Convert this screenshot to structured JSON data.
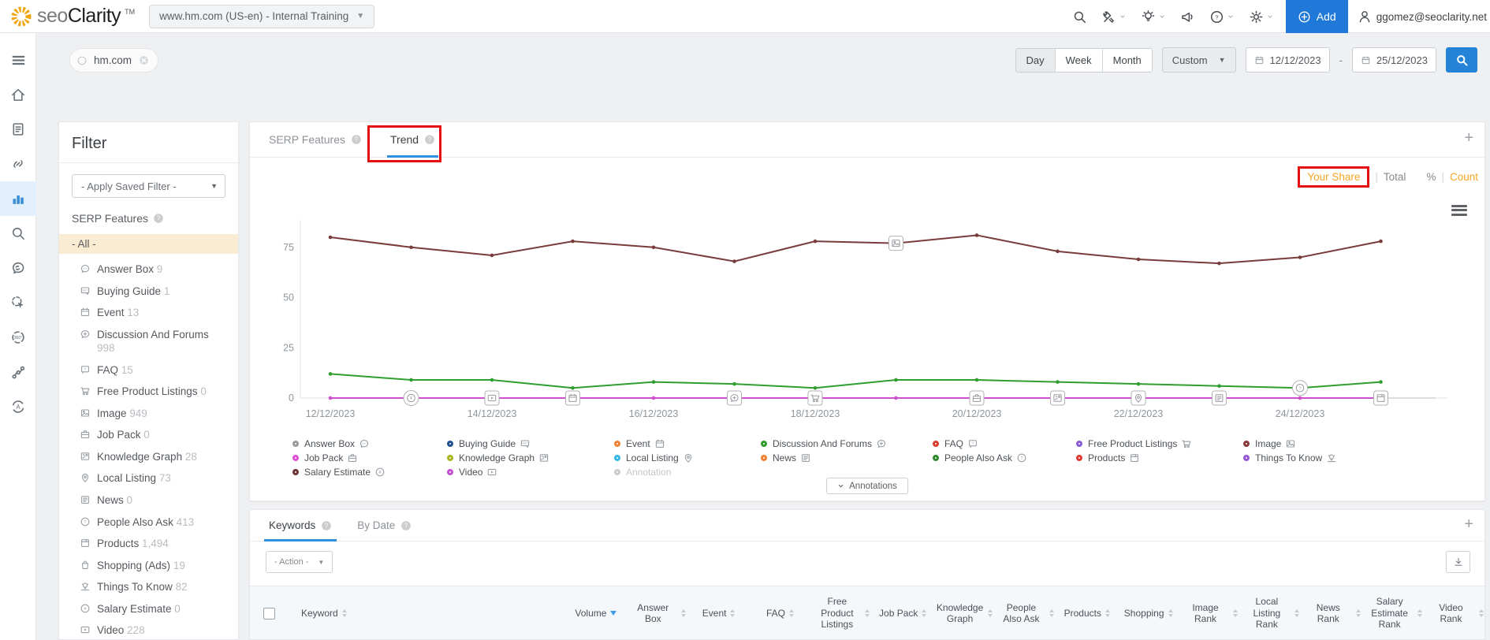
{
  "header": {
    "brand": {
      "seo": "seo",
      "clarity": "Clarity",
      "tm": "TM"
    },
    "profile_selector": "www.hm.com (US-en) - Internal Training",
    "add_button": "Add",
    "user_email": "ggomez@seoclarity.net",
    "icons": [
      {
        "name": "search"
      },
      {
        "name": "tools",
        "chevron": true
      },
      {
        "name": "lightbulb",
        "chevron": true
      },
      {
        "name": "megaphone"
      },
      {
        "name": "help",
        "chevron": true
      },
      {
        "name": "settings",
        "chevron": true
      }
    ]
  },
  "toolbar": {
    "domain_chip": "hm.com",
    "granularity": {
      "options": [
        "Day",
        "Week",
        "Month"
      ],
      "selected": "Day"
    },
    "range_preset": "Custom",
    "date_from": "12/12/2023",
    "separator": "-",
    "date_to": "25/12/2023"
  },
  "sidebar": {
    "items": [
      {
        "icon": "menu"
      },
      {
        "icon": "home"
      },
      {
        "icon": "report"
      },
      {
        "icon": "link"
      },
      {
        "icon": "bar-chart",
        "active": true
      },
      {
        "icon": "search"
      },
      {
        "icon": "brain"
      },
      {
        "icon": "click"
      },
      {
        "icon": "view360"
      },
      {
        "icon": "network"
      },
      {
        "icon": "ai"
      }
    ]
  },
  "filter": {
    "title": "Filter",
    "saved_filter": "- Apply Saved Filter -",
    "section": "SERP Features",
    "selected": "- All -",
    "items": [
      {
        "label": "Answer Box",
        "count": "9",
        "icon": "answer-box"
      },
      {
        "label": "Buying Guide",
        "count": "1",
        "icon": "buying-guide"
      },
      {
        "label": "Event",
        "count": "13",
        "icon": "event"
      },
      {
        "label": "Discussion And Forums",
        "count": "998",
        "icon": "discussion"
      },
      {
        "label": "FAQ",
        "count": "15",
        "icon": "faq"
      },
      {
        "label": "Free Product Listings",
        "count": "0",
        "icon": "cart"
      },
      {
        "label": "Image",
        "count": "949",
        "icon": "image"
      },
      {
        "label": "Job Pack",
        "count": "0",
        "icon": "briefcase"
      },
      {
        "label": "Knowledge Graph",
        "count": "28",
        "icon": "knowledge-graph"
      },
      {
        "label": "Local Listing",
        "count": "73",
        "icon": "pin"
      },
      {
        "label": "News",
        "count": "0",
        "icon": "news"
      },
      {
        "label": "People Also Ask",
        "count": "413",
        "icon": "question"
      },
      {
        "label": "Products",
        "count": "1,494",
        "icon": "product"
      },
      {
        "label": "Shopping (Ads)",
        "count": "19",
        "icon": "bag"
      },
      {
        "label": "Things To Know",
        "count": "82",
        "icon": "bulb"
      },
      {
        "label": "Salary Estimate",
        "count": "0",
        "icon": "salary"
      },
      {
        "label": "Video",
        "count": "228",
        "icon": "video"
      }
    ]
  },
  "serp_panel": {
    "tabs": [
      {
        "label": "SERP Features",
        "active": false
      },
      {
        "label": "Trend",
        "active": true
      }
    ],
    "view_toggle": {
      "your_share": "Your Share",
      "total": "Total",
      "percent": "%",
      "divider": "|",
      "count": "Count"
    },
    "annotations_button": "Annotations"
  },
  "chart_data": {
    "type": "line",
    "x": [
      "12/12/2023",
      "13/12/2023",
      "14/12/2023",
      "15/12/2023",
      "16/12/2023",
      "17/12/2023",
      "18/12/2023",
      "19/12/2023",
      "20/12/2023",
      "21/12/2023",
      "22/12/2023",
      "23/12/2023",
      "24/12/2023",
      "25/12/2023"
    ],
    "xtick_labels": [
      "12/12/2023",
      "14/12/2023",
      "16/12/2023",
      "18/12/2023",
      "20/12/2023",
      "22/12/2023",
      "24/12/2023"
    ],
    "yticks": [
      0,
      25,
      50,
      75
    ],
    "ylim": [
      0,
      85
    ],
    "grid": false,
    "legend_position": "bottom",
    "series": [
      {
        "name": "Image",
        "color": "#7a3b3b",
        "values": [
          80,
          75,
          71,
          78,
          75,
          68,
          78,
          77,
          81,
          73,
          69,
          67,
          70,
          78
        ]
      },
      {
        "name": "Discussion And Forums",
        "color": "#2f9e2f",
        "values": [
          12,
          9,
          9,
          5,
          8,
          7,
          5,
          9,
          9,
          8,
          7,
          6,
          5,
          8
        ]
      },
      {
        "name": "Video",
        "color": "#cf4fcf",
        "values": [
          0,
          0,
          0,
          0,
          0,
          0,
          0,
          0,
          0,
          0,
          0,
          0,
          0,
          0
        ]
      }
    ],
    "markers": [
      {
        "date": "13/12/2023",
        "icon": "salary",
        "series": "zero"
      },
      {
        "date": "14/12/2023",
        "icon": "video",
        "series": "zero"
      },
      {
        "date": "15/12/2023",
        "icon": "event",
        "series": "zero"
      },
      {
        "date": "17/12/2023",
        "icon": "discussion",
        "series": "zero"
      },
      {
        "date": "18/12/2023",
        "icon": "cart",
        "series": "zero"
      },
      {
        "date": "19/12/2023",
        "icon": "image",
        "series": "Image"
      },
      {
        "date": "20/12/2023",
        "icon": "briefcase",
        "series": "zero"
      },
      {
        "date": "21/12/2023",
        "icon": "knowledge-graph",
        "series": "zero"
      },
      {
        "date": "22/12/2023",
        "icon": "pin",
        "series": "zero"
      },
      {
        "date": "23/12/2023",
        "icon": "news",
        "series": "zero"
      },
      {
        "date": "24/12/2023",
        "icon": "question",
        "series": "Discussion And Forums"
      },
      {
        "date": "25/12/2023",
        "icon": "product",
        "series": "zero"
      }
    ]
  },
  "legend": {
    "items": [
      {
        "label": "Answer Box",
        "color": "#9b9b9b",
        "icon": "answer-box",
        "col": 0
      },
      {
        "label": "Job Pack",
        "color": "#e04fd6",
        "icon": "briefcase",
        "col": 0
      },
      {
        "label": "Salary Estimate",
        "color": "#6b3434",
        "icon": "salary",
        "col": 0
      },
      {
        "label": "Buying Guide",
        "color": "#1f4f8f",
        "icon": "buying-guide",
        "col": 1
      },
      {
        "label": "Knowledge Graph",
        "color": "#aab61f",
        "icon": "knowledge-graph",
        "col": 1
      },
      {
        "label": "Video",
        "color": "#c44fd0",
        "icon": "video",
        "col": 1
      },
      {
        "label": "Event",
        "color": "#f28034",
        "icon": "event",
        "col": 2
      },
      {
        "label": "Local Listing",
        "color": "#35b8e8",
        "icon": "pin",
        "col": 2
      },
      {
        "label": "Annotation",
        "color": "#cccccc",
        "icon": null,
        "muted": true,
        "col": 2
      },
      {
        "label": "Discussion And Forums",
        "color": "#2f9e2f",
        "icon": "discussion",
        "col": 3
      },
      {
        "label": "News",
        "color": "#f28034",
        "icon": "news",
        "col": 3
      },
      {
        "label": "FAQ",
        "color": "#e03c31",
        "icon": "faq",
        "col": 4
      },
      {
        "label": "People Also Ask",
        "color": "#2e8b2e",
        "icon": "question",
        "col": 4
      },
      {
        "label": "Free Product Listings",
        "color": "#8a5bd6",
        "icon": "cart",
        "col": 5
      },
      {
        "label": "Products",
        "color": "#e03c31",
        "icon": "product",
        "col": 5
      },
      {
        "label": "Image",
        "color": "#8a3a3a",
        "icon": "image",
        "col": 6
      },
      {
        "label": "Things To Know",
        "color": "#9357d8",
        "icon": "bulb",
        "col": 6
      }
    ]
  },
  "keywords_panel": {
    "tabs": [
      {
        "label": "Keywords",
        "active": true
      },
      {
        "label": "By Date",
        "active": false
      }
    ],
    "action_dropdown": "- Action -",
    "columns": [
      {
        "label": "Keyword",
        "sort": "both"
      },
      {
        "label": "Volume",
        "sort": "desc"
      },
      {
        "label": "Answer Box",
        "sort": "both"
      },
      {
        "label": "Event",
        "sort": "both"
      },
      {
        "label": "FAQ",
        "sort": "both"
      },
      {
        "label": "Free Product Listings",
        "sort": "both"
      },
      {
        "label": "Job Pack",
        "sort": "both"
      },
      {
        "label": "Knowledge Graph",
        "sort": "both"
      },
      {
        "label": "People Also Ask",
        "sort": "both"
      },
      {
        "label": "Products",
        "sort": "both"
      },
      {
        "label": "Shopping",
        "sort": "both"
      },
      {
        "label": "Image Rank",
        "sort": "both"
      },
      {
        "label": "Local Listing Rank",
        "sort": "both"
      },
      {
        "label": "News Rank",
        "sort": "both"
      },
      {
        "label": "Salary Estimate Rank",
        "sort": "both"
      },
      {
        "label": "Video Rank",
        "sort": "both"
      }
    ]
  }
}
